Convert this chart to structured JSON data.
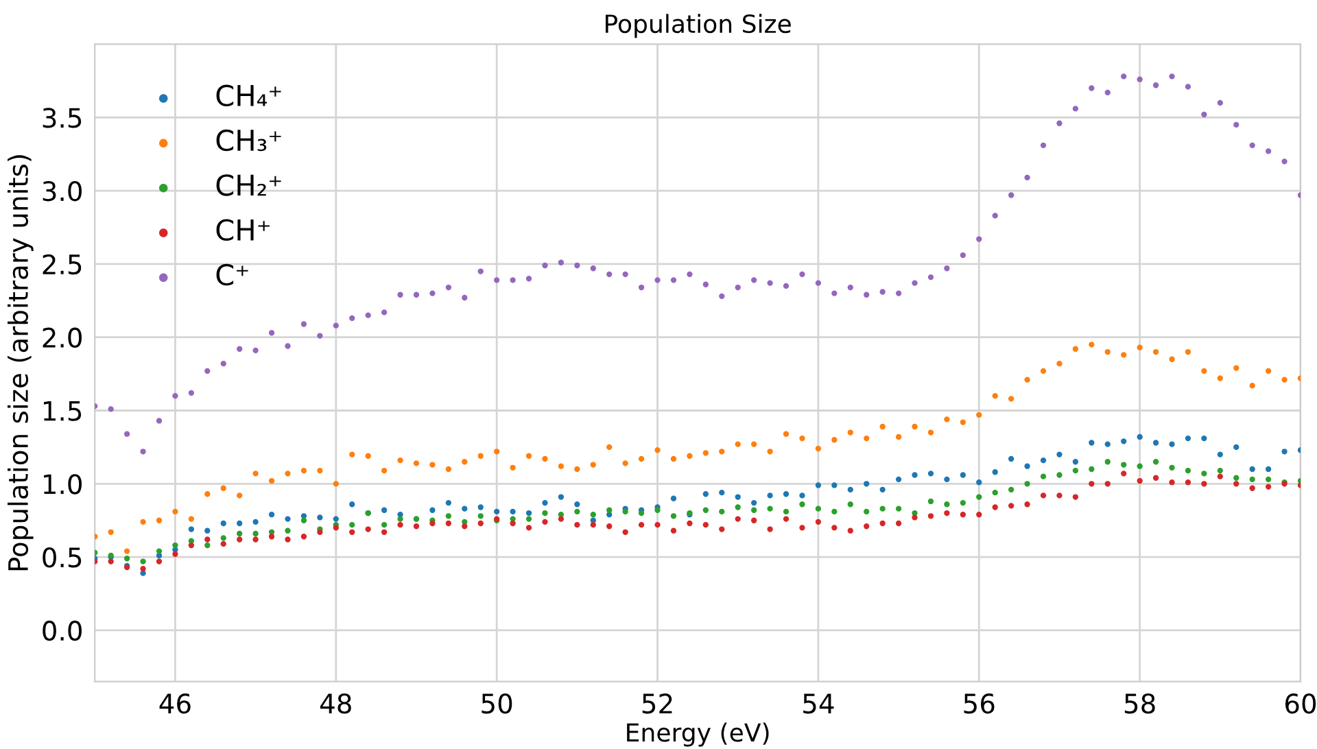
{
  "chart_data": {
    "type": "scatter",
    "title": "Population Size",
    "xlabel": "Energy (eV)",
    "ylabel": "Population size (arbitrary units)",
    "x": [
      45.0,
      45.2,
      45.4,
      45.6,
      45.8,
      46.0,
      46.2,
      46.4,
      46.6,
      46.8,
      47.0,
      47.2,
      47.4,
      47.6,
      47.8,
      48.0,
      48.2,
      48.4,
      48.6,
      48.8,
      49.0,
      49.2,
      49.4,
      49.6,
      49.8,
      50.0,
      50.2,
      50.4,
      50.6,
      50.8,
      51.0,
      51.2,
      51.4,
      51.6,
      51.8,
      52.0,
      52.2,
      52.4,
      52.6,
      52.8,
      53.0,
      53.2,
      53.4,
      53.6,
      53.8,
      54.0,
      54.2,
      54.4,
      54.6,
      54.8,
      55.0,
      55.2,
      55.4,
      55.6,
      55.8,
      56.0,
      56.2,
      56.4,
      56.6,
      56.8,
      57.0,
      57.2,
      57.4,
      57.6,
      57.8,
      58.0,
      58.2,
      58.4,
      58.6,
      58.8,
      59.0,
      59.2,
      59.4,
      59.6,
      59.8,
      60.0
    ],
    "series": [
      {
        "name": "CH₄⁺",
        "color": "#1f77b4",
        "values": [
          0.49,
          0.5,
          0.44,
          0.39,
          0.51,
          0.55,
          0.69,
          0.68,
          0.73,
          0.73,
          0.74,
          0.79,
          0.76,
          0.78,
          0.77,
          0.76,
          0.86,
          0.8,
          0.82,
          0.79,
          0.76,
          0.82,
          0.87,
          0.83,
          0.84,
          0.81,
          0.81,
          0.8,
          0.87,
          0.91,
          0.86,
          0.75,
          0.79,
          0.83,
          0.82,
          0.84,
          0.9,
          0.79,
          0.93,
          0.94,
          0.91,
          0.87,
          0.92,
          0.93,
          0.92,
          0.99,
          0.99,
          0.96,
          1.0,
          0.96,
          1.03,
          1.06,
          1.07,
          1.03,
          1.06,
          1.01,
          1.08,
          1.17,
          1.12,
          1.16,
          1.2,
          1.15,
          1.28,
          1.27,
          1.29,
          1.32,
          1.28,
          1.27,
          1.31,
          1.31,
          1.2,
          1.25,
          1.1,
          1.1,
          1.22,
          1.23
        ]
      },
      {
        "name": "CH₃⁺",
        "color": "#ff7f0e",
        "values": [
          0.64,
          0.67,
          0.54,
          0.74,
          0.75,
          0.81,
          0.76,
          0.93,
          0.97,
          0.92,
          1.07,
          1.02,
          1.07,
          1.09,
          1.09,
          1.0,
          1.2,
          1.19,
          1.09,
          1.16,
          1.14,
          1.13,
          1.1,
          1.15,
          1.19,
          1.22,
          1.11,
          1.19,
          1.17,
          1.12,
          1.1,
          1.13,
          1.25,
          1.14,
          1.17,
          1.23,
          1.17,
          1.19,
          1.21,
          1.22,
          1.27,
          1.27,
          1.22,
          1.34,
          1.31,
          1.24,
          1.3,
          1.35,
          1.31,
          1.39,
          1.32,
          1.39,
          1.35,
          1.44,
          1.42,
          1.47,
          1.6,
          1.58,
          1.71,
          1.77,
          1.82,
          1.92,
          1.95,
          1.9,
          1.88,
          1.93,
          1.9,
          1.85,
          1.9,
          1.77,
          1.72,
          1.79,
          1.67,
          1.77,
          1.71,
          1.72
        ]
      },
      {
        "name": "CH₂⁺",
        "color": "#2ca02c",
        "values": [
          0.53,
          0.51,
          0.49,
          0.47,
          0.54,
          0.58,
          0.61,
          0.58,
          0.63,
          0.66,
          0.66,
          0.67,
          0.68,
          0.75,
          0.69,
          0.72,
          0.72,
          0.8,
          0.72,
          0.76,
          0.76,
          0.75,
          0.78,
          0.74,
          0.78,
          0.75,
          0.76,
          0.76,
          0.8,
          0.79,
          0.81,
          0.79,
          0.82,
          0.81,
          0.8,
          0.82,
          0.78,
          0.8,
          0.82,
          0.81,
          0.84,
          0.82,
          0.83,
          0.81,
          0.86,
          0.83,
          0.81,
          0.86,
          0.81,
          0.83,
          0.83,
          0.8,
          0.88,
          0.86,
          0.87,
          0.91,
          0.94,
          0.96,
          1.0,
          1.05,
          1.06,
          1.09,
          1.1,
          1.15,
          1.13,
          1.12,
          1.15,
          1.11,
          1.09,
          1.07,
          1.09,
          1.04,
          1.03,
          1.03,
          1.01,
          1.02
        ]
      },
      {
        "name": "CH⁺",
        "color": "#d62728",
        "values": [
          0.47,
          0.47,
          0.43,
          0.42,
          0.47,
          0.52,
          0.58,
          0.62,
          0.59,
          0.62,
          0.62,
          0.64,
          0.62,
          0.64,
          0.67,
          0.7,
          0.67,
          0.69,
          0.67,
          0.72,
          0.71,
          0.73,
          0.73,
          0.71,
          0.73,
          0.76,
          0.73,
          0.7,
          0.74,
          0.76,
          0.72,
          0.72,
          0.71,
          0.67,
          0.72,
          0.72,
          0.68,
          0.73,
          0.72,
          0.69,
          0.76,
          0.75,
          0.69,
          0.76,
          0.7,
          0.74,
          0.7,
          0.68,
          0.71,
          0.73,
          0.73,
          0.77,
          0.78,
          0.8,
          0.79,
          0.79,
          0.84,
          0.85,
          0.86,
          0.92,
          0.92,
          0.91,
          1.0,
          1.0,
          1.07,
          1.02,
          1.04,
          1.01,
          1.01,
          1.0,
          1.05,
          1.0,
          0.97,
          0.98,
          1.0,
          0.99
        ]
      },
      {
        "name": "C⁺",
        "color": "#9467bd",
        "values": [
          1.53,
          1.51,
          1.34,
          1.22,
          1.43,
          1.6,
          1.62,
          1.77,
          1.82,
          1.92,
          1.91,
          2.03,
          1.94,
          2.09,
          2.01,
          2.08,
          2.13,
          2.15,
          2.17,
          2.29,
          2.29,
          2.3,
          2.34,
          2.27,
          2.45,
          2.39,
          2.39,
          2.4,
          2.49,
          2.51,
          2.49,
          2.47,
          2.43,
          2.43,
          2.34,
          2.39,
          2.39,
          2.43,
          2.36,
          2.28,
          2.34,
          2.39,
          2.37,
          2.35,
          2.43,
          2.37,
          2.3,
          2.34,
          2.29,
          2.31,
          2.3,
          2.37,
          2.41,
          2.47,
          2.56,
          2.67,
          2.83,
          2.97,
          3.09,
          3.31,
          3.46,
          3.56,
          3.7,
          3.67,
          3.78,
          3.76,
          3.72,
          3.78,
          3.71,
          3.52,
          3.6,
          3.45,
          3.31,
          3.27,
          3.2,
          2.97
        ]
      }
    ],
    "xlim": [
      45,
      60
    ],
    "xticks": [
      46,
      48,
      50,
      52,
      54,
      56,
      58,
      60
    ],
    "ylim": [
      -0.35,
      4.0
    ],
    "yticks": [
      {
        "value": 0,
        "label": "0.0"
      },
      0.5,
      {
        "value": 1,
        "label": "1.0"
      },
      1.5,
      {
        "value": 2,
        "label": "2.0"
      },
      2.5,
      {
        "value": 3,
        "label": "3.0"
      },
      3.5
    ],
    "grid": true,
    "legend": "top left",
    "marker": "circle"
  }
}
